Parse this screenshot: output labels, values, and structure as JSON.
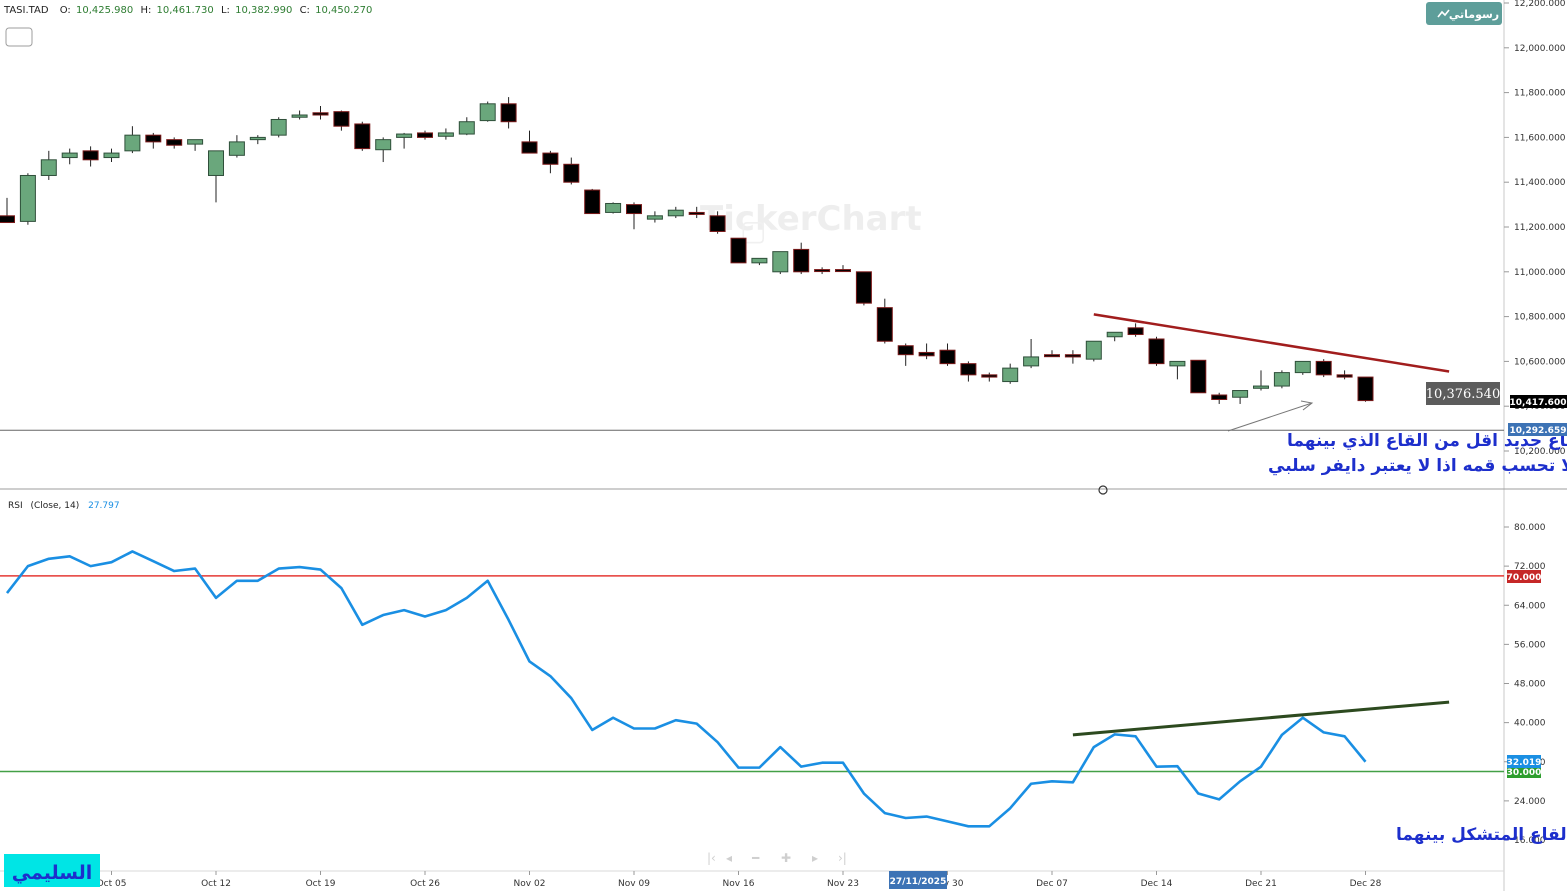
{
  "header": {
    "symbol": "TASI.TAD",
    "open_label": "O:",
    "open": "10,425.980",
    "high_label": "H:",
    "high": "10,461.730",
    "low_label": "L:",
    "low": "10,382.990",
    "close_label": "C:",
    "close": "10,450.270"
  },
  "brand_button": {
    "label": "رسوماتي"
  },
  "watermark": "TickerChart",
  "signature": "السليمي",
  "colors": {
    "up_candle": "#6aa77c",
    "down_candle": "#000000",
    "rsi_line": "#1a8fe3",
    "overbought": "#e53935",
    "oversold": "#43a047",
    "price_trend": "#a11d1d",
    "rsi_trend": "#2d4a1f",
    "annotation_text": "#1d2fcc"
  },
  "price_labels": {
    "hover_price": "10,376.540",
    "last_price": "10,417.600",
    "horizontal_level": "10,292.659"
  },
  "rsi_panel": {
    "title": "RSI",
    "params": "(Close, 14)",
    "value": "27.797",
    "last_label": "32.019",
    "overbought_label": "70.000",
    "oversold_label": "30.000"
  },
  "annotations": {
    "price_line1": "هنا لم ياتي بقاع جديد اقل من القاع الذي بينهما",
    "price_line2": "لذلك لا تحسب قمه اذا لا يعتبر دايفر سلبي",
    "rsi_text": "هنا اتى بقمه جديده  بعد القاع المتشكل بينهما"
  },
  "crosshair_date": "27/11/2025",
  "chart_data": [
    {
      "type": "candlestick",
      "title": "TASI.TAD",
      "ylim": [
        10150,
        12200
      ],
      "y_ticks": [
        "10,200.000",
        "10,400.000",
        "10,600.000",
        "10,800.000",
        "11,000.000",
        "11,200.000",
        "11,400.000",
        "11,600.000",
        "11,800.000",
        "12,000.000",
        "12,200.000"
      ],
      "y_tick_values": [
        10200,
        10400,
        10600,
        10800,
        11000,
        11200,
        11400,
        11600,
        11800,
        12000,
        12200
      ],
      "x_ticks": [
        "Oct 05",
        "Oct 12",
        "Oct 19",
        "Oct 26",
        "Nov 02",
        "Nov 09",
        "Nov 16",
        "Nov 23",
        "Nov 30",
        "Dec 07",
        "Dec 14",
        "Dec 21",
        "Dec 28"
      ],
      "candles": [
        {
          "o": 11250,
          "h": 11330,
          "l": 11220,
          "c": 11220
        },
        {
          "o": 11225,
          "h": 11440,
          "l": 11210,
          "c": 11430
        },
        {
          "o": 11430,
          "h": 11540,
          "l": 11410,
          "c": 11500
        },
        {
          "o": 11510,
          "h": 11550,
          "l": 11480,
          "c": 11530
        },
        {
          "o": 11540,
          "h": 11560,
          "l": 11470,
          "c": 11500
        },
        {
          "o": 11510,
          "h": 11550,
          "l": 11490,
          "c": 11530
        },
        {
          "o": 11540,
          "h": 11650,
          "l": 11530,
          "c": 11610
        },
        {
          "o": 11610,
          "h": 11620,
          "l": 11550,
          "c": 11580
        },
        {
          "o": 11590,
          "h": 11600,
          "l": 11550,
          "c": 11565
        },
        {
          "o": 11570,
          "h": 11590,
          "l": 11540,
          "c": 11590
        },
        {
          "o": 11430,
          "h": 11540,
          "l": 11310,
          "c": 11540
        },
        {
          "o": 11520,
          "h": 11610,
          "l": 11510,
          "c": 11580
        },
        {
          "o": 11590,
          "h": 11610,
          "l": 11570,
          "c": 11600
        },
        {
          "o": 11610,
          "h": 11690,
          "l": 11600,
          "c": 11680
        },
        {
          "o": 11690,
          "h": 11720,
          "l": 11680,
          "c": 11700
        },
        {
          "o": 11710,
          "h": 11740,
          "l": 11680,
          "c": 11700
        },
        {
          "o": 11715,
          "h": 11720,
          "l": 11630,
          "c": 11650
        },
        {
          "o": 11660,
          "h": 11670,
          "l": 11540,
          "c": 11550
        },
        {
          "o": 11545,
          "h": 11600,
          "l": 11490,
          "c": 11590
        },
        {
          "o": 11600,
          "h": 11620,
          "l": 11550,
          "c": 11615
        },
        {
          "o": 11620,
          "h": 11630,
          "l": 11590,
          "c": 11600
        },
        {
          "o": 11605,
          "h": 11640,
          "l": 11590,
          "c": 11620
        },
        {
          "o": 11615,
          "h": 11690,
          "l": 11610,
          "c": 11670
        },
        {
          "o": 11675,
          "h": 11760,
          "l": 11670,
          "c": 11750
        },
        {
          "o": 11750,
          "h": 11780,
          "l": 11640,
          "c": 11670
        },
        {
          "o": 11580,
          "h": 11630,
          "l": 11530,
          "c": 11530
        },
        {
          "o": 11530,
          "h": 11540,
          "l": 11440,
          "c": 11480
        },
        {
          "o": 11480,
          "h": 11510,
          "l": 11390,
          "c": 11400
        },
        {
          "o": 11365,
          "h": 11370,
          "l": 11260,
          "c": 11260
        },
        {
          "o": 11265,
          "h": 11310,
          "l": 11260,
          "c": 11305
        },
        {
          "o": 11300,
          "h": 11310,
          "l": 11190,
          "c": 11260
        },
        {
          "o": 11235,
          "h": 11270,
          "l": 11220,
          "c": 11250
        },
        {
          "o": 11250,
          "h": 11290,
          "l": 11240,
          "c": 11275
        },
        {
          "o": 11265,
          "h": 11290,
          "l": 11240,
          "c": 11260
        },
        {
          "o": 11250,
          "h": 11270,
          "l": 11170,
          "c": 11180
        },
        {
          "o": 11150,
          "h": 11150,
          "l": 11040,
          "c": 11040
        },
        {
          "o": 11040,
          "h": 11060,
          "l": 11030,
          "c": 11060
        },
        {
          "o": 11000,
          "h": 11080,
          "l": 10990,
          "c": 11090
        },
        {
          "o": 11100,
          "h": 11130,
          "l": 10990,
          "c": 11000
        },
        {
          "o": 11010,
          "h": 11020,
          "l": 10990,
          "c": 11005
        },
        {
          "o": 11010,
          "h": 11030,
          "l": 11000,
          "c": 11005
        },
        {
          "o": 11000,
          "h": 11000,
          "l": 10850,
          "c": 10860
        },
        {
          "o": 10840,
          "h": 10880,
          "l": 10680,
          "c": 10690
        },
        {
          "o": 10670,
          "h": 10680,
          "l": 10580,
          "c": 10630
        },
        {
          "o": 10640,
          "h": 10680,
          "l": 10610,
          "c": 10625
        },
        {
          "o": 10650,
          "h": 10680,
          "l": 10580,
          "c": 10590
        },
        {
          "o": 10590,
          "h": 10600,
          "l": 10510,
          "c": 10540
        },
        {
          "o": 10540,
          "h": 10550,
          "l": 10510,
          "c": 10530
        },
        {
          "o": 10510,
          "h": 10590,
          "l": 10500,
          "c": 10570
        },
        {
          "o": 10580,
          "h": 10700,
          "l": 10570,
          "c": 10620
        },
        {
          "o": 10630,
          "h": 10650,
          "l": 10620,
          "c": 10625
        },
        {
          "o": 10630,
          "h": 10650,
          "l": 10590,
          "c": 10620
        },
        {
          "o": 10610,
          "h": 10690,
          "l": 10600,
          "c": 10690
        },
        {
          "o": 10710,
          "h": 10730,
          "l": 10690,
          "c": 10730
        },
        {
          "o": 10750,
          "h": 10770,
          "l": 10710,
          "c": 10720
        },
        {
          "o": 10700,
          "h": 10710,
          "l": 10580,
          "c": 10590
        },
        {
          "o": 10580,
          "h": 10600,
          "l": 10520,
          "c": 10600
        },
        {
          "o": 10605,
          "h": 10605,
          "l": 10460,
          "c": 10460
        },
        {
          "o": 10450,
          "h": 10460,
          "l": 10410,
          "c": 10430
        },
        {
          "o": 10440,
          "h": 10470,
          "l": 10410,
          "c": 10470
        },
        {
          "o": 10480,
          "h": 10560,
          "l": 10470,
          "c": 10490
        },
        {
          "o": 10490,
          "h": 10560,
          "l": 10480,
          "c": 10550
        },
        {
          "o": 10550,
          "h": 10600,
          "l": 10540,
          "c": 10600
        },
        {
          "o": 10600,
          "h": 10610,
          "l": 10530,
          "c": 10540
        },
        {
          "o": 10540,
          "h": 10560,
          "l": 10520,
          "c": 10530
        },
        {
          "o": 10530,
          "h": 10530,
          "l": 10420,
          "c": 10425
        }
      ],
      "horizontal_line": 10292.659,
      "trendline": {
        "from": [
          52,
          10810
        ],
        "to": [
          69,
          10555
        ]
      }
    },
    {
      "type": "line",
      "title": "RSI",
      "ylim": [
        12,
        88
      ],
      "y_ticks": [
        "16.000",
        "24.000",
        "32.000",
        "40.000",
        "48.000",
        "56.000",
        "64.000",
        "72.000",
        "80.000"
      ],
      "y_tick_values": [
        16,
        24,
        32,
        40,
        48,
        56,
        64,
        72,
        80
      ],
      "series": [
        {
          "name": "RSI",
          "values": [
            66.5,
            72,
            73.5,
            74,
            72,
            72.8,
            75,
            73,
            71,
            71.5,
            65.5,
            69,
            69,
            71.5,
            71.8,
            71.3,
            67.5,
            60,
            62,
            63,
            61.7,
            63,
            65.5,
            69,
            61,
            52.5,
            49.5,
            45,
            38.5,
            41,
            38.8,
            38.8,
            40.5,
            39.8,
            36,
            30.8,
            30.8,
            35,
            31,
            31.8,
            31.8,
            25.5,
            21.5,
            20.5,
            20.8,
            19.8,
            18.8,
            18.8,
            22.5,
            27.5,
            28,
            27.8,
            35,
            37.6,
            37.2,
            31,
            31.1,
            25.5,
            24.3,
            28,
            31,
            37.5,
            41,
            38,
            37.2,
            32
          ]
        }
      ],
      "levels": [
        70,
        30
      ],
      "trendline": {
        "from": [
          51,
          37.5
        ],
        "to": [
          69,
          44.2
        ]
      }
    }
  ]
}
